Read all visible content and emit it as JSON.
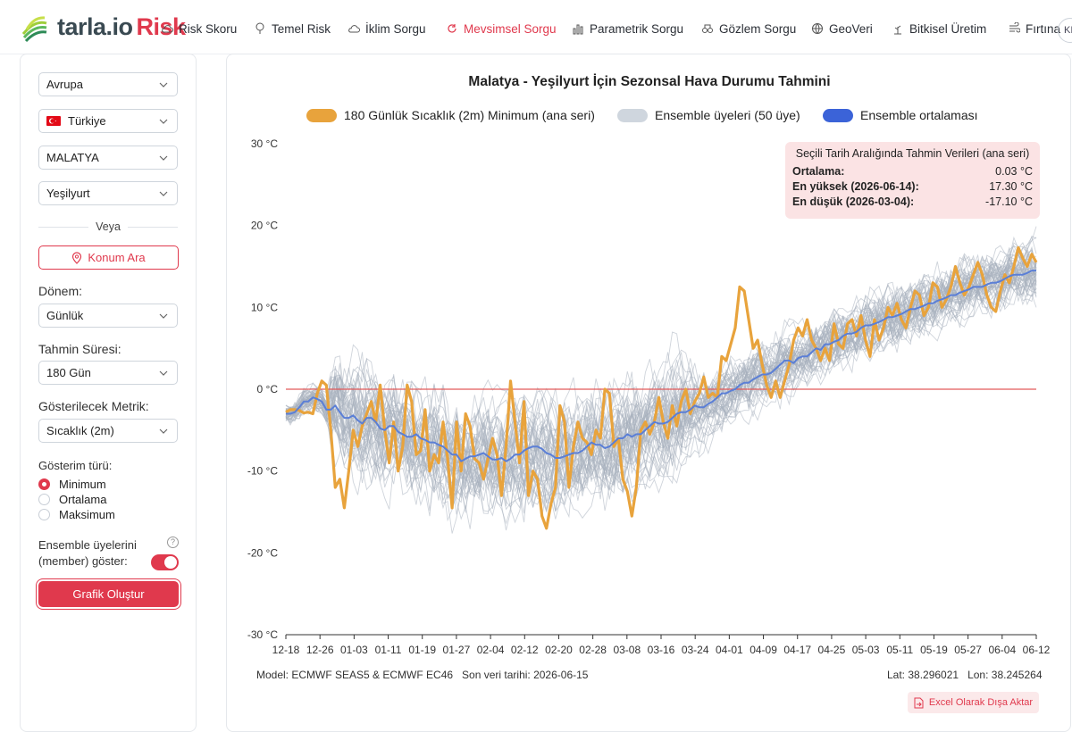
{
  "brand": {
    "name": "tarla.io",
    "accent": "Risk",
    "accent_color": "#e0394d"
  },
  "nav": [
    {
      "label": "Risk Skoru",
      "icon": "cloud-icon",
      "active": false
    },
    {
      "label": "Temel Risk",
      "icon": "tree-icon",
      "active": false
    },
    {
      "label": "İklim Sorgu",
      "icon": "cloud-icon",
      "active": false
    },
    {
      "label": "Mevsimsel Sorgu",
      "icon": "sync-icon",
      "active": true
    },
    {
      "label": "Parametrik Sorgu",
      "icon": "bar-chart-icon",
      "active": false
    },
    {
      "label": "Gözlem Sorgu",
      "icon": "binoculars-icon",
      "active": false
    },
    {
      "label": "GeoVeri",
      "icon": "globe-icon",
      "active": false
    },
    {
      "label": "Bitkisel Üretim",
      "icon": "plant-icon",
      "active": false
    },
    {
      "label": "Fırtına",
      "icon": "storm-icon",
      "active": false
    }
  ],
  "user_initials": "KI",
  "sidebar": {
    "region": "Avrupa",
    "country": "Türkiye",
    "province": "MALATYA",
    "district": "Yeşilyurt",
    "or_text": "Veya",
    "location_search_label": "Konum Ara",
    "period_label": "Dönem:",
    "period_value": "Günlük",
    "forecast_label": "Tahmin Süresi:",
    "forecast_value": "180 Gün",
    "metric_label": "Gösterilecek Metrik:",
    "metric_value": "Sıcaklık (2m)",
    "display_type_label": "Gösterim türü:",
    "display_options": [
      {
        "label": "Minimum",
        "selected": true
      },
      {
        "label": "Ortalama",
        "selected": false
      },
      {
        "label": "Maksimum",
        "selected": false
      }
    ],
    "ensemble_label_1": "Ensemble üyelerini",
    "ensemble_label_2": "(member) göster:",
    "ensemble_on": true,
    "create_button": "Grafik Oluştur"
  },
  "main": {
    "info_title": "Seçili Tarih Aralığında Tahmin Verileri (ana seri)",
    "info_rows": [
      {
        "key": "Ortalama:",
        "value": "0.03 °C"
      },
      {
        "key": "En yüksek (2026-06-14):",
        "value": "17.30 °C"
      },
      {
        "key": "En düşük (2026-03-04):",
        "value": "-17.10 °C"
      }
    ],
    "footer_model": "Model: ECMWF SEAS5 & ECMWF EC46   Son veri tarihi: 2026-06-15",
    "footer_coords": "Lat: 38.296021   Lon: 38.245264",
    "excel_button": "Excel Olarak Dışa Aktar"
  },
  "chart_data": {
    "type": "line",
    "title": "Malatya - Yeşilyurt İçin Sezonsal Hava Durumu Tahmini",
    "ylabel": "",
    "xlabel": "",
    "y_ticks": [
      "30 °C",
      "20 °C",
      "10 °C",
      "0 °C",
      "-10 °C",
      "-20 °C",
      "-30 °C"
    ],
    "ylim": [
      -30,
      30
    ],
    "x_ticks": [
      "12-18",
      "12-26",
      "01-03",
      "01-11",
      "01-19",
      "01-27",
      "02-04",
      "02-12",
      "02-20",
      "02-28",
      "03-08",
      "03-16",
      "03-24",
      "04-01",
      "04-09",
      "04-17",
      "04-25",
      "05-03",
      "05-11",
      "05-19",
      "05-27",
      "06-04",
      "06-12"
    ],
    "reference_line": 0,
    "legend_position": "top",
    "ensemble_count": 50,
    "series": [
      {
        "name": "180 Günlük Sıcaklık (2m) Minimum (ana seri)",
        "color": "#e8a33c",
        "values": [
          -2.8,
          -2.5,
          -2.5,
          -2.6,
          -2.9,
          -2.8,
          -3.0,
          -0.5,
          1.0,
          0.5,
          -5.0,
          -12.0,
          -11.0,
          -14.5,
          -10.0,
          -5.0,
          -7.0,
          -4.5,
          -3.0,
          -1.5,
          -4.0,
          0.5,
          -5.0,
          -9.0,
          -4.0,
          -10.0,
          -7.0,
          0.5,
          -1.5,
          -8.0,
          -7.5,
          -2.5,
          -10.0,
          -8.0,
          -9.0,
          -4.0,
          -8.5,
          -14.5,
          -4.0,
          -10.0,
          -3.0,
          -4.5,
          -8.5,
          -9.0,
          -11.0,
          -8.5,
          -6.0,
          -8.0,
          -13.0,
          -7.0,
          1.0,
          -4.0,
          -9.0,
          -1.5,
          -13.0,
          -10.0,
          -11.0,
          -15.5,
          -17.0,
          -14.0,
          -12.0,
          -2.0,
          -4.0,
          -12.0,
          -7.0,
          -4.0,
          -6.0,
          -6.5,
          -8.0,
          -5.0,
          -6.0,
          0.0,
          -0.5,
          -7.0,
          -6.0,
          -11.0,
          -12.5,
          -15.5,
          -12.0,
          -5.0,
          -4.0,
          -5.5,
          -4.0,
          -1.0,
          -4.0,
          -6.0,
          -2.0,
          -4.5,
          -1.5,
          0.0,
          -3.0,
          -1.5,
          -0.5,
          1.5,
          -1.0,
          -0.5,
          -1.0,
          4.0,
          3.5,
          5.5,
          7.5,
          12.5,
          12.0,
          8.5,
          5.0,
          6.0,
          3.0,
          0.5,
          -1.0,
          1.0,
          -1.0,
          1.0,
          3.0,
          6.0,
          7.5,
          6.5,
          8.5,
          6.0,
          5.0,
          3.5,
          5.0,
          3.5,
          8.0,
          5.5,
          5.0,
          8.0,
          8.5,
          6.5,
          9.0,
          6.0,
          4.0,
          8.5,
          6.0,
          7.5,
          10.0,
          9.0,
          10.5,
          8.5,
          7.5,
          10.0,
          12.0,
          11.5,
          9.0,
          10.0,
          13.0,
          12.5,
          10.0,
          11.0,
          12.5,
          15.0,
          13.0,
          11.5,
          12.5,
          14.0,
          15.5,
          14.0,
          11.5,
          10.0,
          9.5,
          12.0,
          14.0,
          13.0,
          15.0,
          17.3,
          16.0,
          15.0,
          16.5,
          15.5
        ]
      },
      {
        "name": "Ensemble ortalaması",
        "color": "#4a6fd8",
        "values": [
          -3.0,
          -2.8,
          -2.2,
          -1.5,
          -1.0,
          -1.2,
          -1.5,
          -2.5,
          -2.0,
          -2.8,
          -3.5,
          -3.2,
          -3.8,
          -4.2,
          -3.5,
          -4.0,
          -4.8,
          -5.0,
          -4.5,
          -5.2,
          -5.5,
          -5.8,
          -5.5,
          -6.0,
          -6.2,
          -6.5,
          -6.8,
          -7.0,
          -7.5,
          -8.0,
          -8.8,
          -8.5,
          -8.2,
          -8.0,
          -7.8,
          -8.2,
          -8.6,
          -8.4,
          -8.8,
          -8.5,
          -8.0,
          -7.5,
          -7.2,
          -7.0,
          -7.3,
          -7.8,
          -8.0,
          -8.4,
          -8.2,
          -8.0,
          -7.8,
          -7.5,
          -7.0,
          -6.5,
          -6.8,
          -7.2,
          -7.0,
          -6.5,
          -6.0,
          -5.5,
          -5.8,
          -5.5,
          -5.0,
          -4.5,
          -4.0,
          -4.2,
          -4.0,
          -3.5,
          -3.0,
          -2.8,
          -2.5,
          -2.0,
          -2.2,
          -1.8,
          -1.5,
          -1.0,
          -0.5,
          -0.2,
          0.0,
          0.5,
          0.8,
          1.2,
          1.5,
          1.8,
          2.0,
          2.5,
          3.0,
          3.5,
          3.2,
          3.8,
          4.0,
          4.5,
          5.0,
          4.8,
          5.5,
          5.8,
          6.0,
          6.5,
          6.8,
          7.0,
          7.5,
          7.8,
          8.0,
          8.2,
          8.5,
          8.8,
          9.0,
          9.2,
          9.5,
          9.8,
          10.0,
          10.2,
          10.5,
          10.8,
          11.0,
          11.2,
          11.5,
          11.8,
          12.0,
          12.2,
          12.5,
          12.5,
          12.8,
          13.0,
          13.2,
          13.5,
          13.8,
          14.0,
          14.0,
          14.2,
          14.5,
          14.5
        ]
      }
    ]
  }
}
